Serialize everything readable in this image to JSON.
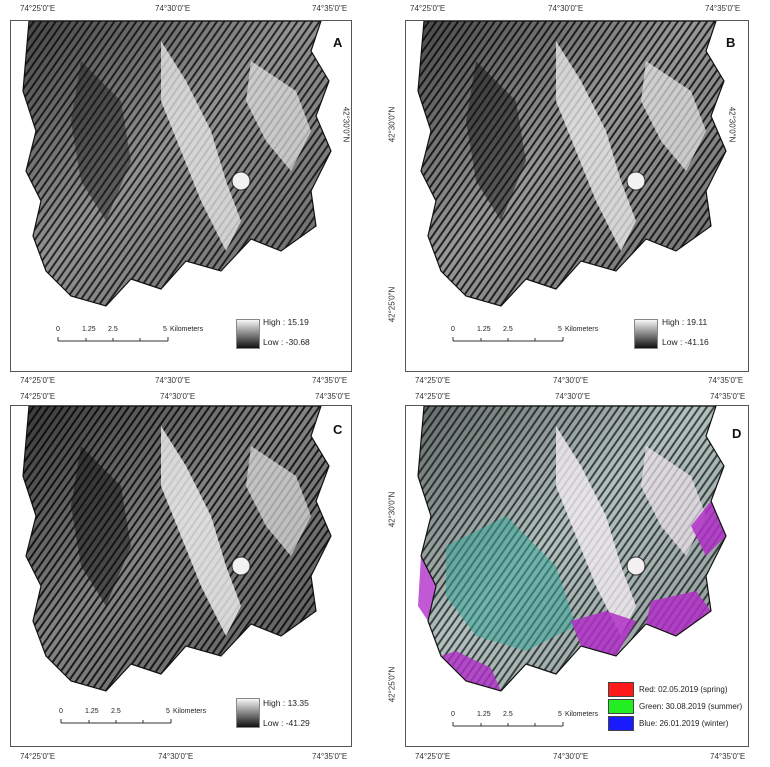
{
  "coords": {
    "lon_left": "74°25'0\"E",
    "lon_mid": "74°30'0\"E",
    "lon_right": "74°35'0\"E",
    "lat_upper": "42°30'0\"N",
    "lat_lower": "42°25'0\"N"
  },
  "panels": [
    {
      "id": "A",
      "letter": "A",
      "high": "High : 15.19",
      "low": "Low : -30.68"
    },
    {
      "id": "B",
      "letter": "B",
      "high": "High : 19.11",
      "low": "Low : -41.16"
    },
    {
      "id": "C",
      "letter": "C",
      "high": "High : 13.35",
      "low": "Low : -41.29"
    },
    {
      "id": "D",
      "letter": "D"
    }
  ],
  "scale_bar": {
    "labels": [
      "0",
      "1.25",
      "2.5",
      "5"
    ],
    "unit": "Kilometers"
  },
  "rgb_legend": {
    "red": "Red: 02.05.2019 (spring)",
    "green": "Green: 30.08.2019 (summer)",
    "blue": "Blue: 26.01.2019 (winter)"
  },
  "colors": {
    "red": "#ff1a1a",
    "green": "#22ee22",
    "blue": "#1a1aff",
    "glacier_magenta": "#b030c8",
    "teal": "#3aa89a"
  }
}
